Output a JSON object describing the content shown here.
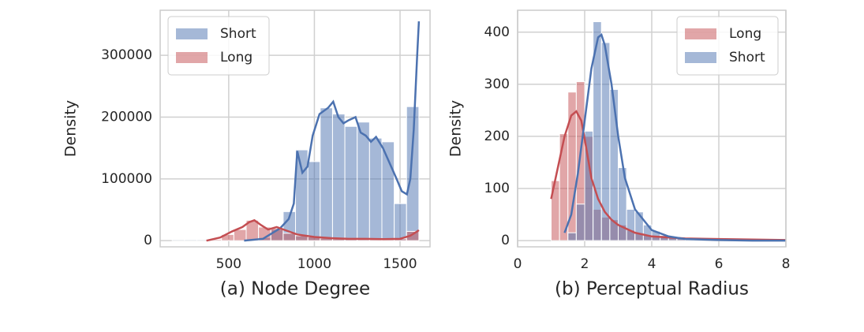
{
  "chart_data": [
    {
      "type": "histogram",
      "xlabel": "(a) Node Degree",
      "ylabel": "Density",
      "xlim": [
        100,
        1675
      ],
      "ylim": [
        -10000,
        373000
      ],
      "xticks": [
        500,
        1000,
        1500
      ],
      "yticks": [
        0,
        100000,
        200000,
        300000
      ],
      "grid": true,
      "legend": "upper left",
      "bins": [
        170,
        242,
        314,
        386,
        458,
        530,
        602,
        674,
        746,
        818,
        890,
        962,
        1034,
        1106,
        1178,
        1250,
        1322,
        1394,
        1466,
        1538,
        1610
      ],
      "series": [
        {
          "name": "Short",
          "color": "#4c72b0",
          "values": [
            1500,
            1500,
            1500,
            1500,
            1500,
            1500,
            2000,
            5000,
            18000,
            47000,
            147000,
            128000,
            215000,
            205000,
            185000,
            192000,
            166000,
            160000,
            60000,
            217000
          ],
          "kde": {
            "x": [
              590,
              700,
              800,
              850,
              880,
              900,
              930,
              960,
              990,
              1030,
              1080,
              1110,
              1140,
              1170,
              1200,
              1240,
              1270,
              1300,
              1330,
              1360,
              1400,
              1440,
              1480,
              1510,
              1540,
              1560,
              1580,
              1600,
              1610
            ],
            "values": [
              0,
              3000,
              20000,
              35000,
              60000,
              145000,
              110000,
              120000,
              170000,
              205000,
              215000,
              225000,
              200000,
              190000,
              195000,
              200000,
              175000,
              170000,
              160000,
              168000,
              150000,
              125000,
              100000,
              80000,
              75000,
              100000,
              180000,
              300000,
              355000
            ]
          }
        },
        {
          "name": "Long",
          "color": "#c44e52",
          "values": [
            0,
            0,
            0,
            2000,
            10000,
            18000,
            33000,
            22000,
            20000,
            12000,
            8000,
            6000,
            4000,
            3000,
            3000,
            2000,
            2000,
            2000,
            3000,
            15000
          ],
          "kde": {
            "x": [
              370,
              450,
              520,
              580,
              620,
              650,
              690,
              730,
              780,
              840,
              900,
              1000,
              1100,
              1200,
              1300,
              1400,
              1500,
              1560,
              1600,
              1610
            ],
            "values": [
              0,
              5000,
              15000,
              22000,
              30000,
              33000,
              25000,
              18000,
              22000,
              16000,
              10000,
              6000,
              4000,
              3000,
              3000,
              2500,
              3000,
              8000,
              15000,
              17000
            ]
          }
        }
      ]
    },
    {
      "type": "histogram",
      "xlabel": "(b) Perceptual Radius",
      "ylabel": "Density",
      "xlim": [
        0,
        8
      ],
      "ylim": [
        -12,
        442
      ],
      "xticks": [
        0,
        2,
        4,
        6,
        8
      ],
      "yticks": [
        0,
        100,
        200,
        300,
        400
      ],
      "grid": true,
      "legend": "upper right",
      "bins": [
        1,
        1.25,
        1.5,
        1.75,
        2,
        2.25,
        2.5,
        2.75,
        3,
        3.25,
        3.5,
        3.75,
        4,
        4.25,
        4.5,
        4.75,
        5,
        5.25,
        5.5,
        5.75,
        6,
        6.25,
        6.5,
        6.75,
        7,
        7.25,
        7.5,
        7.75,
        8
      ],
      "series": [
        {
          "name": "Long",
          "color": "#c44e52",
          "values": [
            115,
            205,
            285,
            305,
            200,
            60,
            45,
            40,
            30,
            20,
            15,
            10,
            8,
            6,
            5,
            4,
            3,
            3,
            2,
            2,
            2,
            2,
            2,
            2,
            2,
            2,
            2,
            2
          ],
          "kde": {
            "x": [
              1,
              1.2,
              1.4,
              1.6,
              1.75,
              1.9,
              2,
              2.2,
              2.4,
              2.6,
              2.8,
              3,
              3.5,
              4,
              5,
              6,
              7,
              8
            ],
            "values": [
              80,
              140,
              200,
              240,
              248,
              230,
              195,
              120,
              80,
              55,
              40,
              30,
              15,
              8,
              4,
              3,
              2,
              1
            ]
          }
        },
        {
          "name": "Short",
          "color": "#4c72b0",
          "values": [
            0,
            0,
            15,
            70,
            210,
            420,
            380,
            290,
            140,
            60,
            55,
            30,
            18,
            10,
            6,
            4,
            3,
            2,
            2,
            1,
            1,
            1,
            1,
            0,
            0,
            0,
            0,
            0
          ],
          "kde": {
            "x": [
              1.4,
              1.6,
              1.8,
              2,
              2.2,
              2.4,
              2.5,
              2.6,
              2.8,
              3,
              3.2,
              3.5,
              4,
              4.5,
              5,
              6,
              7,
              8
            ],
            "values": [
              15,
              50,
              130,
              230,
              330,
              390,
              395,
              375,
              300,
              200,
              120,
              60,
              20,
              8,
              3,
              1,
              0,
              0
            ]
          }
        }
      ]
    }
  ]
}
